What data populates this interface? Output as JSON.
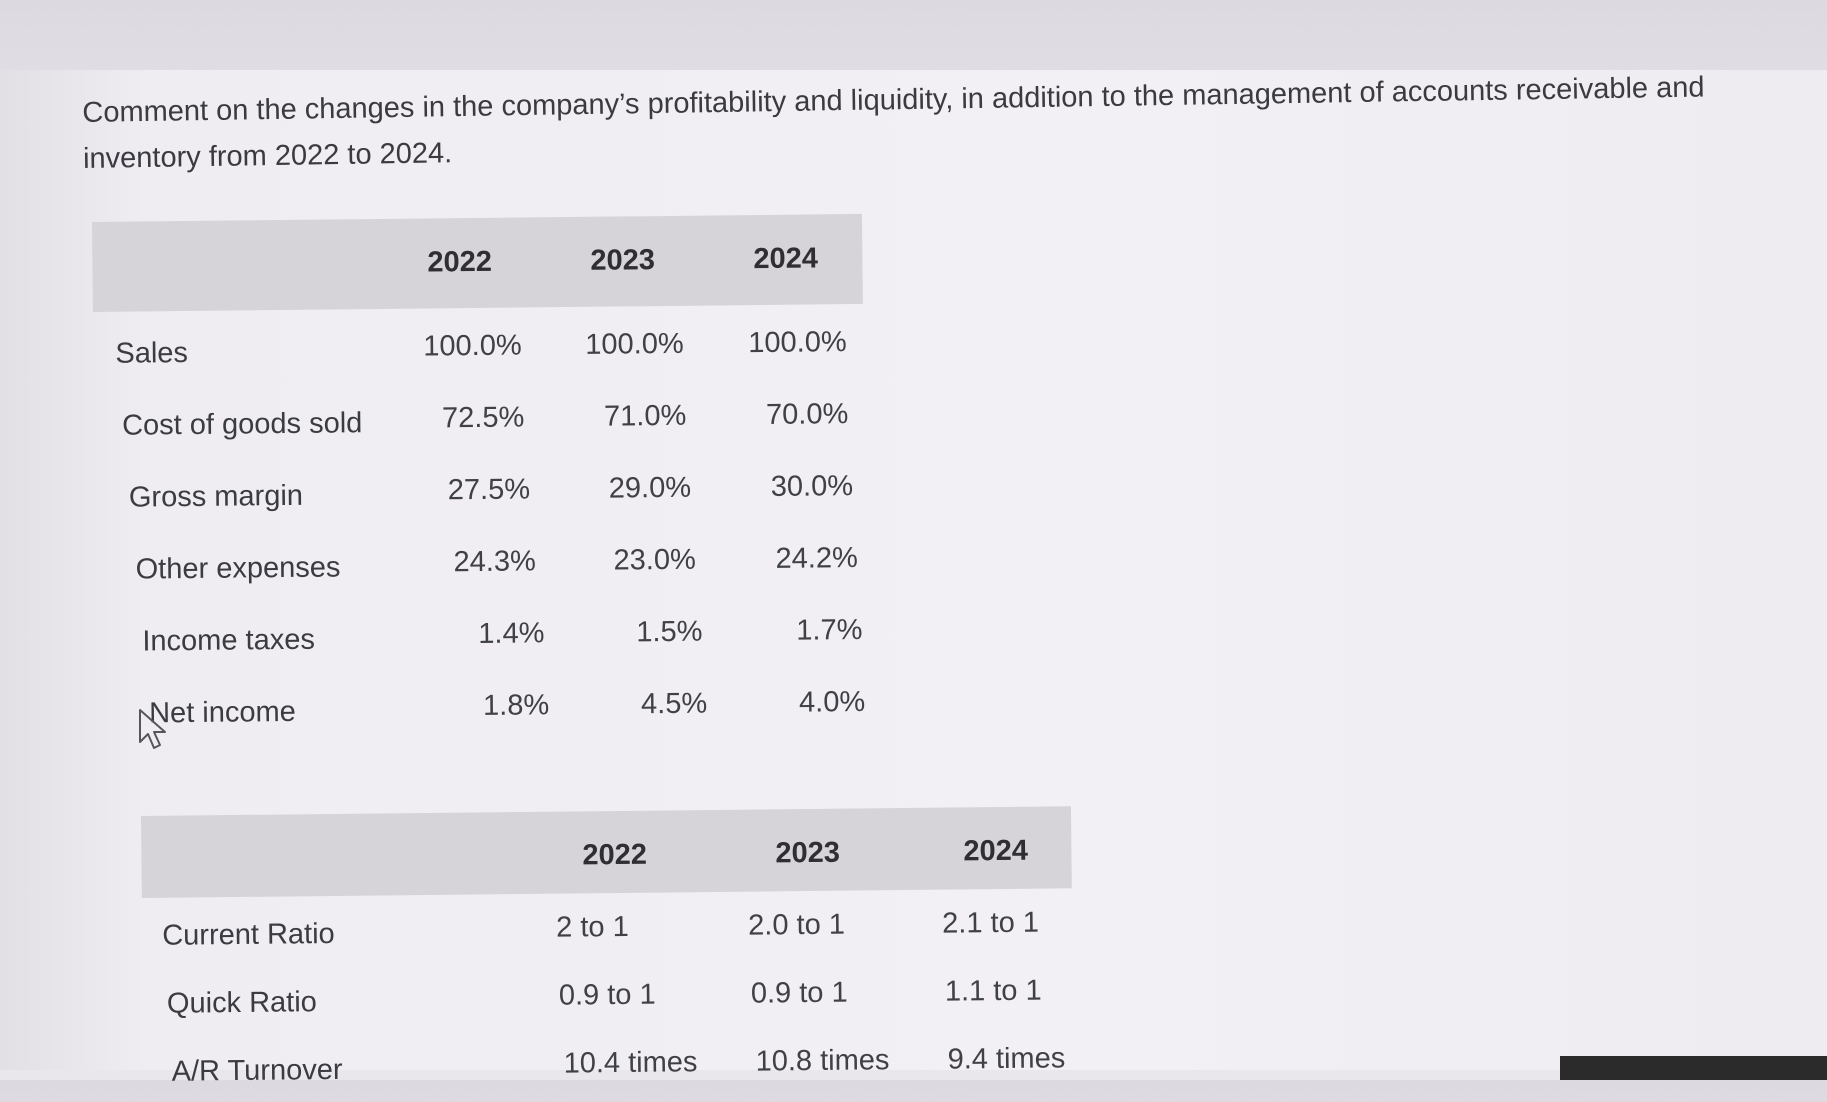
{
  "question": {
    "text": "Comment on the changes in the company’s profitability and liquidity, in addition to the management of accounts receivable and inventory from 2022 to 2024."
  },
  "table1": {
    "headers": [
      "2022",
      "2023",
      "2024"
    ],
    "rows": [
      {
        "label": "Sales",
        "values": [
          "100.0%",
          "100.0%",
          "100.0%"
        ]
      },
      {
        "label": "Cost of goods sold",
        "values": [
          "72.5%",
          "71.0%",
          "70.0%"
        ]
      },
      {
        "label": "Gross margin",
        "values": [
          "27.5%",
          "29.0%",
          "30.0%"
        ]
      },
      {
        "label": "Other expenses",
        "values": [
          "24.3%",
          "23.0%",
          "24.2%"
        ]
      },
      {
        "label": "Income taxes",
        "values": [
          "1.4%",
          "1.5%",
          "1.7%"
        ]
      },
      {
        "label": "Net income",
        "values": [
          "1.8%",
          "4.5%",
          "4.0%"
        ]
      }
    ]
  },
  "table2": {
    "headers": [
      "2022",
      "2023",
      "2024"
    ],
    "rows": [
      {
        "label": "Current Ratio",
        "values": [
          "2 to 1",
          "2.0 to 1",
          "2.1 to 1"
        ]
      },
      {
        "label": "Quick Ratio",
        "values": [
          "0.9 to 1",
          "0.9 to 1",
          "1.1 to 1"
        ]
      },
      {
        "label": "A/R Turnover",
        "values": [
          "10.4 times",
          "10.8 times",
          "9.4 times"
        ]
      }
    ]
  },
  "cursor": {
    "icon": "mouse-pointer-icon"
  }
}
